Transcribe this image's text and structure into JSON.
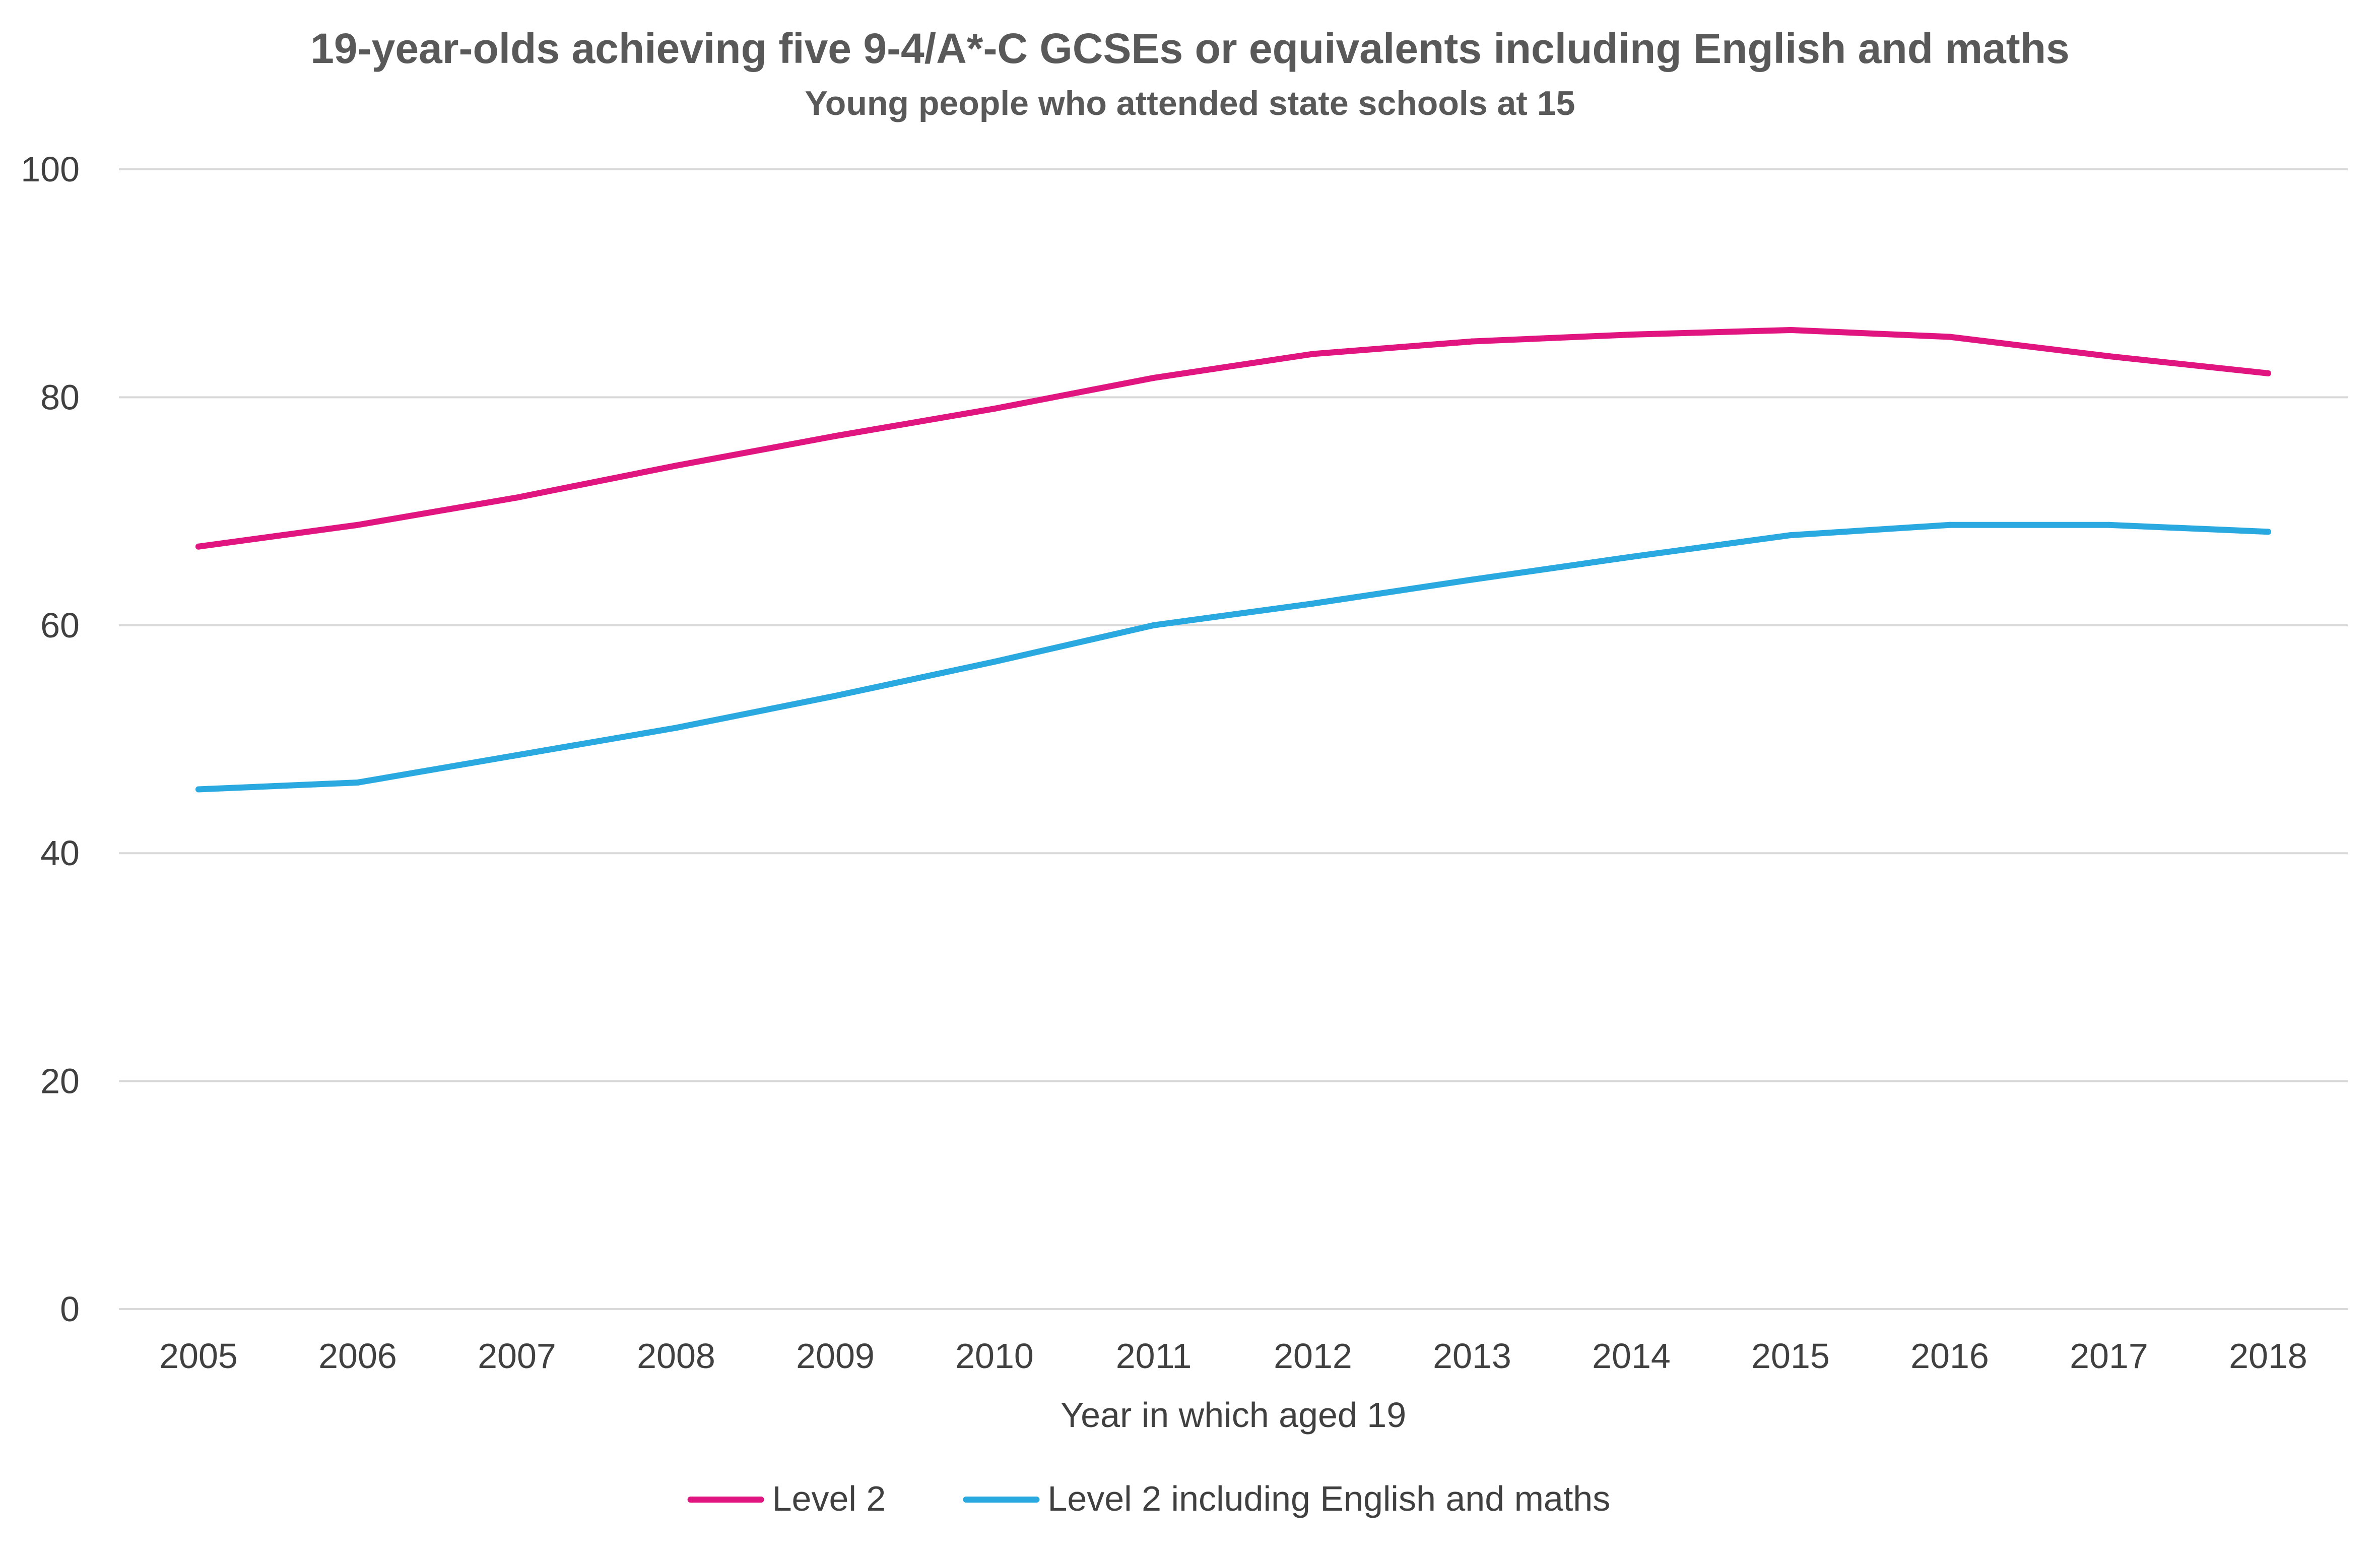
{
  "chart_data": {
    "type": "line",
    "title": "19-year-olds achieving five 9-4/A*-C GCSEs or equivalents including English and maths",
    "subtitle": "Young people who attended state schools at 15",
    "xlabel": "Year in which aged 19",
    "ylabel": "",
    "categories": [
      "2005",
      "2006",
      "2007",
      "2008",
      "2009",
      "2010",
      "2011",
      "2012",
      "2013",
      "2014",
      "2015",
      "2016",
      "2017",
      "2018"
    ],
    "ylim": [
      0,
      100
    ],
    "yticks": [
      0,
      20,
      40,
      60,
      80,
      100
    ],
    "grid": true,
    "legend_position": "bottom",
    "series": [
      {
        "name": "Level 2",
        "color": "#e0157f",
        "values": [
          66.9,
          68.8,
          71.2,
          74.0,
          76.6,
          79.0,
          81.7,
          83.8,
          84.9,
          85.5,
          85.9,
          85.3,
          83.6,
          82.1
        ]
      },
      {
        "name": "Level 2 including English and maths",
        "color": "#2aa9e0",
        "values": [
          45.6,
          46.2,
          48.6,
          51.0,
          53.8,
          56.8,
          60.0,
          61.9,
          64.0,
          66.0,
          67.9,
          68.8,
          68.8,
          68.2
        ]
      }
    ]
  }
}
